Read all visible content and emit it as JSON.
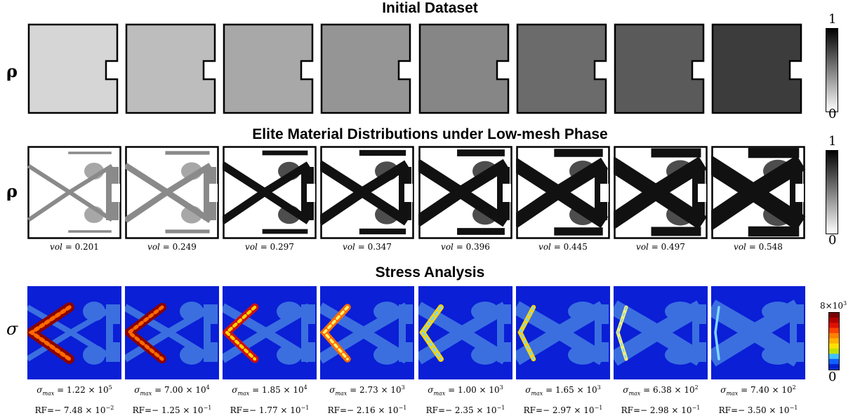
{
  "titles": {
    "initial": "Initial Dataset",
    "elite": "Elite Material Distributions under Low-mesh Phase",
    "stress": "Stress Analysis"
  },
  "row_labels": {
    "rho1": "ρ",
    "rho2": "ρ",
    "sigma": "σ"
  },
  "initial_shades": [
    "#d6d6d6",
    "#bdbdbd",
    "#a8a8a8",
    "#959595",
    "#868686",
    "#6b6b6b",
    "#5a5a5a",
    "#3c3c3c"
  ],
  "vol_label": "vol",
  "vols": [
    "0.201",
    "0.249",
    "0.297",
    "0.347",
    "0.396",
    "0.445",
    "0.497",
    "0.548"
  ],
  "sigma_label": "σmax",
  "stress": [
    {
      "mant": "1.22",
      "exp": "5",
      "rf_mant": "7.48",
      "rf_exp": "−2"
    },
    {
      "mant": "7.00",
      "exp": "4",
      "rf_mant": "1.25",
      "rf_exp": "−1"
    },
    {
      "mant": "1.85",
      "exp": "4",
      "rf_mant": "1.77",
      "rf_exp": "−1"
    },
    {
      "mant": "2.73",
      "exp": "3",
      "rf_mant": "2.16",
      "rf_exp": "−1"
    },
    {
      "mant": "1.00",
      "exp": "3",
      "rf_mant": "2.35",
      "rf_exp": "−1"
    },
    {
      "mant": "1.65",
      "exp": "3",
      "rf_mant": "2.97",
      "rf_exp": "−1"
    },
    {
      "mant": "6.38",
      "exp": "2",
      "rf_mant": "2.98",
      "rf_exp": "−1"
    },
    {
      "mant": "7.40",
      "exp": "2",
      "rf_mant": "3.50",
      "rf_exp": "−1"
    }
  ],
  "rf_prefix": "RF=−",
  "colorbars": {
    "rho_top": "1",
    "rho_bottom": "0",
    "sigma_top_mant": "8×10",
    "sigma_top_exp": "3",
    "sigma_bottom": "0"
  },
  "colors": {
    "stress_bg": "#0a1fd6",
    "stress_struct": "#3b6fe0",
    "stress_hot": [
      "#8b0000",
      "#d01010",
      "#ff6a00",
      "#ffd400",
      "#fff36a",
      "#7fd7ff"
    ]
  }
}
